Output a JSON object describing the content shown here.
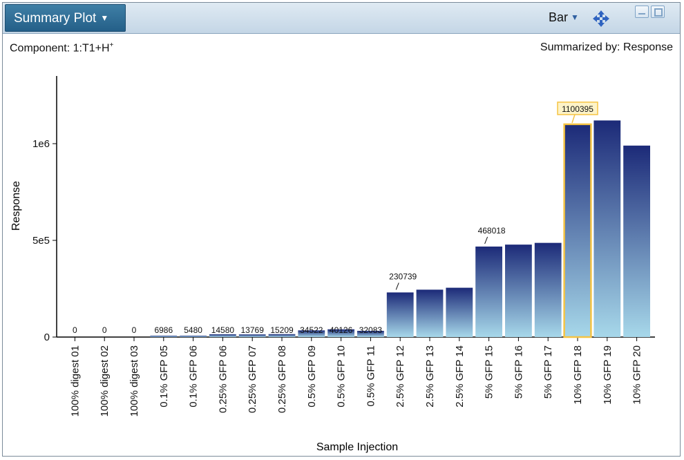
{
  "toolbar": {
    "plot_menu_label": "Summary Plot",
    "chart_type": "Bar",
    "icons": [
      "chevron-down-icon",
      "move-icon",
      "minimize-icon",
      "restore-icon"
    ]
  },
  "header": {
    "component_prefix": "Component: 1:T1+H",
    "component_superscript": "+",
    "summarized_by": "Summarized by: Response"
  },
  "colors": {
    "bar_top": "#1c2a78",
    "bar_bottom": "#a7d8ea",
    "highlight": "#f5c342",
    "title_button": "#2f6f98"
  },
  "chart_data": {
    "type": "bar",
    "title": "",
    "xlabel": "Sample Injection",
    "ylabel": "Response",
    "ylim": [
      0,
      1350000
    ],
    "yticks": [
      0,
      500000,
      1000000
    ],
    "ytick_labels": [
      "0",
      "5e5",
      "1e6"
    ],
    "grid": false,
    "categories": [
      "100% digest 01",
      "100% digest 02",
      "100% digest 03",
      "0.1% GFP 05",
      "0.1% GFP 06",
      "0.25% GFP 06",
      "0.25% GFP 07",
      "0.25% GFP 08",
      "0.5% GFP 09",
      "0.5% GFP 10",
      "0.5% GFP 11",
      "2.5% GFP 12",
      "2.5% GFP 13",
      "2.5% GFP 14",
      "5% GFP 15",
      "5% GFP 16",
      "5% GFP 17",
      "10% GFP 18",
      "10% GFP 19",
      "10% GFP 20"
    ],
    "values": [
      0,
      0,
      0,
      6986,
      5480,
      14580,
      13769,
      15209,
      34522,
      40126,
      32083,
      230739,
      245000,
      255000,
      468018,
      478000,
      487000,
      1100395,
      1120000,
      990000
    ],
    "data_labels": [
      "0",
      "0",
      "0",
      "6986",
      "5480",
      "14580",
      "13769",
      "15209",
      "34522",
      "40126",
      "32083",
      "230739",
      "",
      "",
      "468018",
      "",
      "",
      "1100395",
      "",
      ""
    ],
    "highlighted_index": 17
  }
}
